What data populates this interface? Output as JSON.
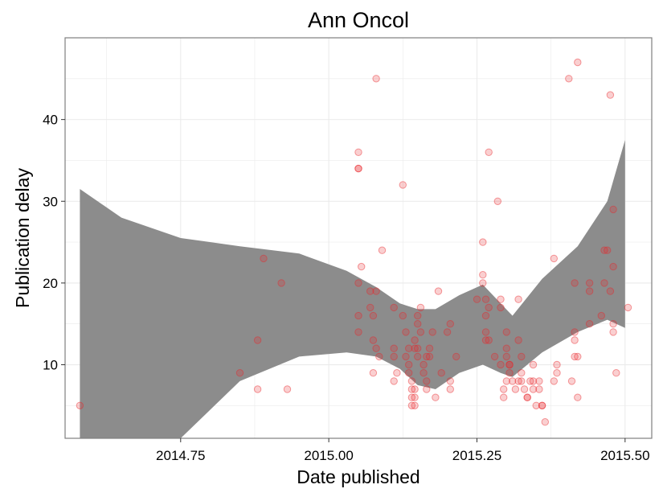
{
  "chart_data": {
    "type": "scatter",
    "title": "Ann Oncol",
    "xlabel": "Date published",
    "ylabel": "Publication delay",
    "xlim": [
      2014.555,
      2015.545
    ],
    "ylim": [
      1,
      50
    ],
    "xticks": [
      2014.75,
      2015.0,
      2015.25,
      2015.5
    ],
    "xtick_labels": [
      "2014.75",
      "2015.00",
      "2015.25",
      "2015.50"
    ],
    "yticks": [
      10,
      20,
      30,
      40
    ],
    "ytick_labels": [
      "10",
      "20",
      "30",
      "40"
    ],
    "grid": true,
    "legend": "none",
    "colors": {
      "points": "#e8262b",
      "band": "#8c8c8c",
      "grid": "#ebebeb",
      "border": "#7f7f7f"
    },
    "band": {
      "x": [
        2014.58,
        2014.65,
        2014.75,
        2014.85,
        2014.95,
        2015.03,
        2015.08,
        2015.12,
        2015.15,
        2015.18,
        2015.22,
        2015.26,
        2015.29,
        2015.31,
        2015.36,
        2015.42,
        2015.47,
        2015.5
      ],
      "upper": [
        31.5,
        28,
        25.5,
        24.5,
        23.6,
        21.5,
        19.5,
        17.5,
        16.8,
        16.8,
        18.5,
        19.8,
        17.5,
        16.0,
        20.5,
        24.5,
        30,
        37.5
      ],
      "lower": [
        1.0,
        1.0,
        1.0,
        8.0,
        11,
        11.5,
        11,
        9.5,
        7.5,
        7.0,
        9.0,
        10,
        9.0,
        8.5,
        11.5,
        14.0,
        15.5,
        14.5
      ]
    },
    "points": [
      [
        2014.58,
        5
      ],
      [
        2014.85,
        9
      ],
      [
        2014.88,
        13
      ],
      [
        2014.88,
        7
      ],
      [
        2014.89,
        23
      ],
      [
        2014.92,
        20
      ],
      [
        2014.93,
        7
      ],
      [
        2015.05,
        36
      ],
      [
        2015.05,
        34
      ],
      [
        2015.05,
        34
      ],
      [
        2015.05,
        20
      ],
      [
        2015.05,
        16
      ],
      [
        2015.05,
        14
      ],
      [
        2015.055,
        22
      ],
      [
        2015.07,
        19
      ],
      [
        2015.07,
        17
      ],
      [
        2015.075,
        16
      ],
      [
        2015.075,
        13
      ],
      [
        2015.075,
        9
      ],
      [
        2015.08,
        45
      ],
      [
        2015.08,
        19
      ],
      [
        2015.08,
        12
      ],
      [
        2015.085,
        11
      ],
      [
        2015.09,
        24
      ],
      [
        2015.11,
        17
      ],
      [
        2015.11,
        12
      ],
      [
        2015.11,
        11
      ],
      [
        2015.11,
        8
      ],
      [
        2015.115,
        9
      ],
      [
        2015.125,
        32
      ],
      [
        2015.125,
        16
      ],
      [
        2015.13,
        14
      ],
      [
        2015.13,
        11
      ],
      [
        2015.135,
        12
      ],
      [
        2015.135,
        10
      ],
      [
        2015.135,
        9
      ],
      [
        2015.14,
        8
      ],
      [
        2015.14,
        7
      ],
      [
        2015.14,
        6
      ],
      [
        2015.14,
        5
      ],
      [
        2015.145,
        5
      ],
      [
        2015.145,
        6
      ],
      [
        2015.145,
        7
      ],
      [
        2015.145,
        12
      ],
      [
        2015.145,
        13
      ],
      [
        2015.15,
        11
      ],
      [
        2015.15,
        15
      ],
      [
        2015.15,
        16
      ],
      [
        2015.15,
        12
      ],
      [
        2015.155,
        17
      ],
      [
        2015.155,
        14
      ],
      [
        2015.16,
        10
      ],
      [
        2015.16,
        9
      ],
      [
        2015.165,
        8
      ],
      [
        2015.165,
        7
      ],
      [
        2015.165,
        11
      ],
      [
        2015.17,
        12
      ],
      [
        2015.17,
        11
      ],
      [
        2015.175,
        14
      ],
      [
        2015.18,
        6
      ],
      [
        2015.185,
        19
      ],
      [
        2015.19,
        9
      ],
      [
        2015.2,
        14
      ],
      [
        2015.205,
        15
      ],
      [
        2015.205,
        8
      ],
      [
        2015.205,
        7
      ],
      [
        2015.215,
        11
      ],
      [
        2015.25,
        18
      ],
      [
        2015.26,
        21
      ],
      [
        2015.26,
        20
      ],
      [
        2015.26,
        25
      ],
      [
        2015.265,
        18
      ],
      [
        2015.265,
        16
      ],
      [
        2015.265,
        14
      ],
      [
        2015.265,
        13
      ],
      [
        2015.27,
        36
      ],
      [
        2015.27,
        17
      ],
      [
        2015.27,
        13
      ],
      [
        2015.28,
        11
      ],
      [
        2015.285,
        30
      ],
      [
        2015.29,
        18
      ],
      [
        2015.29,
        17
      ],
      [
        2015.29,
        10
      ],
      [
        2015.295,
        7
      ],
      [
        2015.295,
        6
      ],
      [
        2015.3,
        12
      ],
      [
        2015.3,
        14
      ],
      [
        2015.3,
        11
      ],
      [
        2015.3,
        8
      ],
      [
        2015.305,
        10
      ],
      [
        2015.305,
        10
      ],
      [
        2015.305,
        9
      ],
      [
        2015.31,
        8
      ],
      [
        2015.315,
        7
      ],
      [
        2015.32,
        18
      ],
      [
        2015.32,
        13
      ],
      [
        2015.32,
        8
      ],
      [
        2015.325,
        11
      ],
      [
        2015.325,
        8
      ],
      [
        2015.325,
        9
      ],
      [
        2015.33,
        7
      ],
      [
        2015.335,
        6
      ],
      [
        2015.335,
        6
      ],
      [
        2015.34,
        8
      ],
      [
        2015.345,
        10
      ],
      [
        2015.345,
        8
      ],
      [
        2015.345,
        7
      ],
      [
        2015.35,
        5
      ],
      [
        2015.355,
        8
      ],
      [
        2015.355,
        7
      ],
      [
        2015.36,
        5
      ],
      [
        2015.36,
        5
      ],
      [
        2015.365,
        3
      ],
      [
        2015.38,
        8
      ],
      [
        2015.38,
        23
      ],
      [
        2015.385,
        10
      ],
      [
        2015.385,
        9
      ],
      [
        2015.405,
        45
      ],
      [
        2015.41,
        8
      ],
      [
        2015.415,
        20
      ],
      [
        2015.415,
        11
      ],
      [
        2015.415,
        13
      ],
      [
        2015.415,
        14
      ],
      [
        2015.42,
        47
      ],
      [
        2015.42,
        11
      ],
      [
        2015.42,
        6
      ],
      [
        2015.44,
        20
      ],
      [
        2015.44,
        19
      ],
      [
        2015.44,
        15
      ],
      [
        2015.46,
        16
      ],
      [
        2015.465,
        24
      ],
      [
        2015.465,
        20
      ],
      [
        2015.47,
        24
      ],
      [
        2015.475,
        43
      ],
      [
        2015.475,
        19
      ],
      [
        2015.48,
        29
      ],
      [
        2015.48,
        22
      ],
      [
        2015.48,
        15
      ],
      [
        2015.48,
        14
      ],
      [
        2015.485,
        9
      ],
      [
        2015.505,
        17
      ]
    ]
  }
}
